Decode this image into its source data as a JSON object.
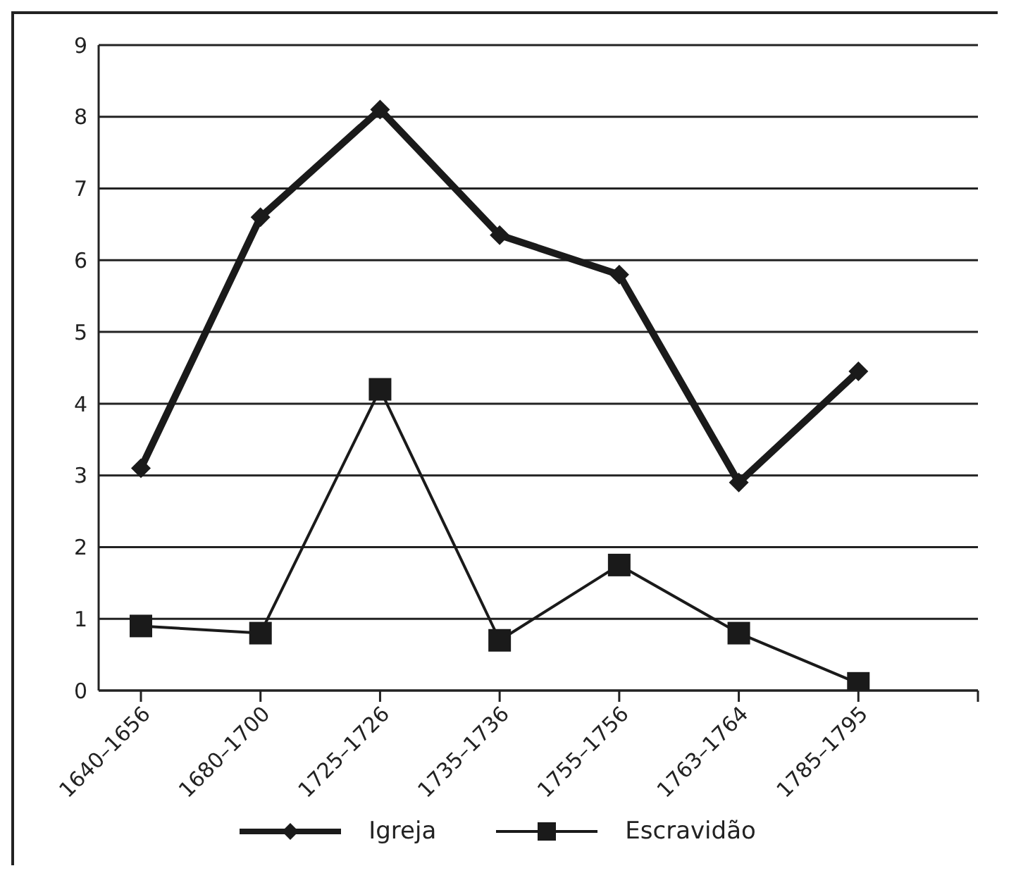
{
  "chart_data": {
    "type": "line",
    "categories": [
      "1640–1656",
      "1680–1700",
      "1725–1726",
      "1735–1736",
      "1755–1756",
      "1763–1764",
      "1785–1795",
      null
    ],
    "series": [
      {
        "name": "Igreja",
        "color": "#1a1a1a",
        "marker": "diamond",
        "values": [
          3.1,
          6.6,
          8.1,
          6.35,
          5.8,
          2.9,
          4.45,
          null
        ]
      },
      {
        "name": "Escravidão",
        "color": "#1a1a1a",
        "marker": "square",
        "values": [
          0.9,
          0.8,
          4.2,
          0.7,
          1.75,
          0.8,
          0.1,
          null
        ]
      }
    ],
    "ylim": [
      0,
      9
    ],
    "yticks": [
      0,
      1,
      2,
      3,
      4,
      5,
      6,
      7,
      8,
      9
    ],
    "grid": "y",
    "legend": "bottom",
    "line_style": "solid"
  }
}
